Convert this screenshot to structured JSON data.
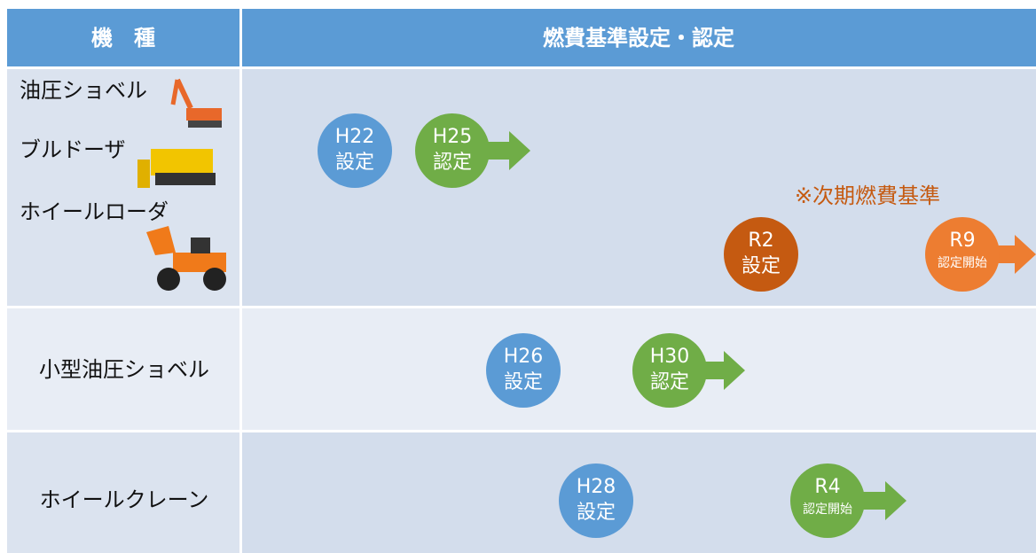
{
  "header": {
    "machine": "機　種",
    "standard": "燃費基準設定・認定"
  },
  "rows": [
    {
      "machines": [
        "油圧ショベル",
        "ブルドーザ",
        "ホイールローダ"
      ],
      "milestones": [
        {
          "era": "H22",
          "label": "設定",
          "color": "#5b9bd5"
        },
        {
          "era": "H25",
          "label": "認定",
          "color": "#70ad47"
        },
        {
          "era": "R2",
          "label": "設定",
          "color": "#c55a11"
        },
        {
          "era": "R9",
          "label": "認定開始",
          "color": "#ed7d31"
        }
      ],
      "note": "※次期燃費基準"
    },
    {
      "machines": [
        "小型油圧ショベル"
      ],
      "milestones": [
        {
          "era": "H26",
          "label": "設定",
          "color": "#5b9bd5"
        },
        {
          "era": "H30",
          "label": "認定",
          "color": "#70ad47"
        }
      ]
    },
    {
      "machines": [
        "ホイールクレーン"
      ],
      "milestones": [
        {
          "era": "H28",
          "label": "設定",
          "color": "#5b9bd5"
        },
        {
          "era": "R4",
          "label": "認定開始",
          "color": "#70ad47"
        }
      ]
    }
  ]
}
